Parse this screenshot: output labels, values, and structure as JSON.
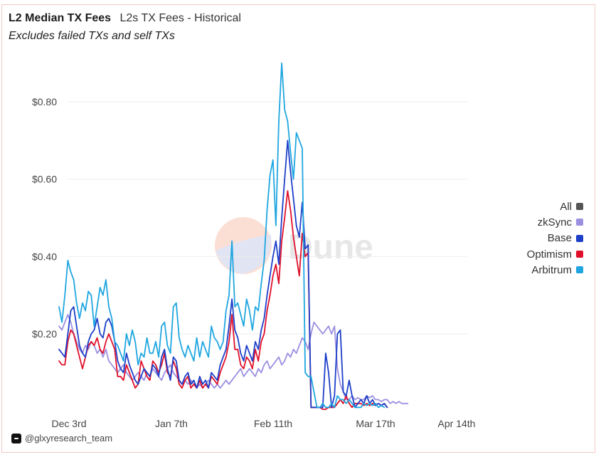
{
  "header": {
    "title": "L2 Median TX Fees",
    "subtitle": "L2s TX Fees - Historical",
    "note": "Excludes failed TXs and self TXs"
  },
  "watermark": {
    "text": "Dune"
  },
  "footer": {
    "handle": "@glxyresearch_team",
    "icon": "glxy-logo-icon"
  },
  "legend": [
    {
      "name": "All",
      "color": "#555555"
    },
    {
      "name": "zkSync",
      "color": "#9b8fe0"
    },
    {
      "name": "Base",
      "color": "#1d3fc9"
    },
    {
      "name": "Optimism",
      "color": "#e0102a"
    },
    {
      "name": "Arbitrum",
      "color": "#1fa6e0"
    }
  ],
  "chart_data": {
    "type": "line",
    "x_start": "2023-11-28",
    "x_step_days": 1,
    "x_ticks": [
      "Dec 3rd",
      "Jan 7th",
      "Feb 11th",
      "Mar 17th",
      "Apr 14th"
    ],
    "y_ticks": [
      "$0.20",
      "$0.40",
      "$0.60",
      "$0.80"
    ],
    "y_tick_values": [
      0.2,
      0.4,
      0.6,
      0.8
    ],
    "ylim": [
      0,
      0.85
    ],
    "grid": true,
    "legend_position": "right",
    "series": [
      {
        "name": "All",
        "color": "#555555",
        "values": []
      },
      {
        "name": "zkSync",
        "color": "#9b8fe0",
        "values": [
          0.22,
          0.21,
          0.23,
          0.25,
          0.23,
          0.2,
          0.18,
          0.16,
          0.15,
          0.17,
          0.16,
          0.18,
          0.17,
          0.15,
          0.16,
          0.14,
          0.16,
          0.13,
          0.12,
          0.11,
          0.1,
          0.11,
          0.12,
          0.1,
          0.09,
          0.08,
          0.09,
          0.1,
          0.09,
          0.08,
          0.1,
          0.09,
          0.11,
          0.1,
          0.09,
          0.08,
          0.1,
          0.11,
          0.12,
          0.1,
          0.09,
          0.08,
          0.07,
          0.08,
          0.07,
          0.08,
          0.07,
          0.06,
          0.07,
          0.06,
          0.07,
          0.08,
          0.07,
          0.06,
          0.07,
          0.06,
          0.07,
          0.08,
          0.07,
          0.08,
          0.09,
          0.1,
          0.11,
          0.09,
          0.1,
          0.11,
          0.1,
          0.09,
          0.11,
          0.1,
          0.12,
          0.13,
          0.11,
          0.12,
          0.13,
          0.14,
          0.12,
          0.13,
          0.15,
          0.14,
          0.16,
          0.15,
          0.17,
          0.19,
          0.18,
          0.16,
          0.2,
          0.23,
          0.22,
          0.21,
          0.2,
          0.21,
          0.22,
          0.2,
          0.22,
          0.11,
          0.07,
          0.05,
          0.03,
          0.03,
          0.04,
          0.03,
          0.035,
          0.03,
          0.03,
          0.04,
          0.035,
          0.04,
          0.03,
          0.03,
          0.025,
          0.03,
          0.03,
          0.02,
          0.025,
          0.02,
          0.025,
          0.02,
          0.02,
          0.02
        ]
      },
      {
        "name": "Base",
        "color": "#1d3fc9",
        "values": [
          0.16,
          0.15,
          0.14,
          0.2,
          0.26,
          0.27,
          0.22,
          0.17,
          0.15,
          0.14,
          0.18,
          0.2,
          0.21,
          0.24,
          0.2,
          0.19,
          0.23,
          0.24,
          0.22,
          0.18,
          0.13,
          0.11,
          0.1,
          0.15,
          0.12,
          0.1,
          0.08,
          0.07,
          0.09,
          0.11,
          0.1,
          0.09,
          0.12,
          0.11,
          0.09,
          0.14,
          0.16,
          0.11,
          0.08,
          0.14,
          0.13,
          0.08,
          0.07,
          0.09,
          0.1,
          0.07,
          0.08,
          0.06,
          0.09,
          0.07,
          0.08,
          0.06,
          0.1,
          0.09,
          0.08,
          0.12,
          0.14,
          0.16,
          0.22,
          0.29,
          0.21,
          0.19,
          0.15,
          0.13,
          0.17,
          0.15,
          0.13,
          0.18,
          0.16,
          0.21,
          0.24,
          0.3,
          0.35,
          0.4,
          0.44,
          0.38,
          0.5,
          0.6,
          0.7,
          0.62,
          0.55,
          0.48,
          0.45,
          0.54,
          0.42,
          0.43,
          0.01,
          0.01,
          0.01,
          0.01,
          0.01,
          0.15,
          0.1,
          0.01,
          0.04,
          0.2,
          0.21,
          0.05,
          0.04,
          0.08,
          0.04,
          0.01,
          0.02,
          0.03,
          0.02,
          0.04,
          0.02,
          0.03,
          0.015,
          0.02,
          0.015,
          0.02,
          0.01
        ]
      },
      {
        "name": "Optimism",
        "color": "#e0102a",
        "values": [
          0.13,
          0.12,
          0.12,
          0.18,
          0.21,
          0.2,
          0.17,
          0.14,
          0.11,
          0.14,
          0.17,
          0.18,
          0.17,
          0.19,
          0.16,
          0.15,
          0.18,
          0.2,
          0.18,
          0.16,
          0.09,
          0.09,
          0.08,
          0.12,
          0.1,
          0.08,
          0.06,
          0.07,
          0.13,
          0.11,
          0.09,
          0.08,
          0.13,
          0.12,
          0.1,
          0.12,
          0.15,
          0.1,
          0.09,
          0.13,
          0.11,
          0.07,
          0.06,
          0.08,
          0.09,
          0.06,
          0.07,
          0.06,
          0.08,
          0.06,
          0.07,
          0.06,
          0.09,
          0.08,
          0.07,
          0.1,
          0.12,
          0.14,
          0.18,
          0.25,
          0.16,
          0.16,
          0.12,
          0.11,
          0.14,
          0.13,
          0.11,
          0.16,
          0.13,
          0.18,
          0.2,
          0.26,
          0.3,
          0.35,
          0.38,
          0.33,
          0.44,
          0.5,
          0.57,
          0.52,
          0.45,
          0.4,
          0.35,
          0.46,
          0.4,
          0.41,
          0.01,
          0.01,
          0.01,
          0.01,
          0.005,
          0.005,
          0.01,
          0.01,
          0.01,
          0.02,
          0.03,
          0.02,
          0.04,
          0.02,
          0.01,
          0.02,
          0.02,
          0.02,
          0.015,
          0.02,
          0.015,
          0.02,
          0.015,
          0.02,
          0.015,
          0.02,
          0.01
        ]
      },
      {
        "name": "Arbitrum",
        "color": "#1fa6e0",
        "values": [
          0.27,
          0.23,
          0.3,
          0.39,
          0.36,
          0.34,
          0.28,
          0.24,
          0.28,
          0.26,
          0.31,
          0.3,
          0.22,
          0.27,
          0.32,
          0.3,
          0.34,
          0.27,
          0.24,
          0.18,
          0.17,
          0.15,
          0.13,
          0.2,
          0.17,
          0.21,
          0.18,
          0.12,
          0.15,
          0.14,
          0.19,
          0.15,
          0.15,
          0.18,
          0.14,
          0.22,
          0.23,
          0.17,
          0.15,
          0.27,
          0.28,
          0.19,
          0.16,
          0.14,
          0.17,
          0.15,
          0.13,
          0.19,
          0.14,
          0.18,
          0.16,
          0.14,
          0.22,
          0.19,
          0.18,
          0.16,
          0.18,
          0.26,
          0.3,
          0.44,
          0.27,
          0.28,
          0.25,
          0.22,
          0.29,
          0.26,
          0.21,
          0.27,
          0.26,
          0.33,
          0.39,
          0.52,
          0.61,
          0.65,
          0.48,
          0.75,
          0.9,
          0.78,
          0.75,
          0.67,
          0.6,
          0.72,
          0.7,
          0.68,
          0.1,
          0.09,
          0.09,
          0.05,
          0.01,
          0.01,
          0.02,
          0.01,
          0.01,
          0.02,
          0.01,
          0.04,
          0.03,
          0.03,
          0.02,
          0.03,
          0.02,
          0.01,
          0.01,
          0.01,
          0.02,
          0.015,
          0.02,
          0.015,
          0.02,
          0.01,
          0.015,
          0.01
        ]
      }
    ]
  }
}
